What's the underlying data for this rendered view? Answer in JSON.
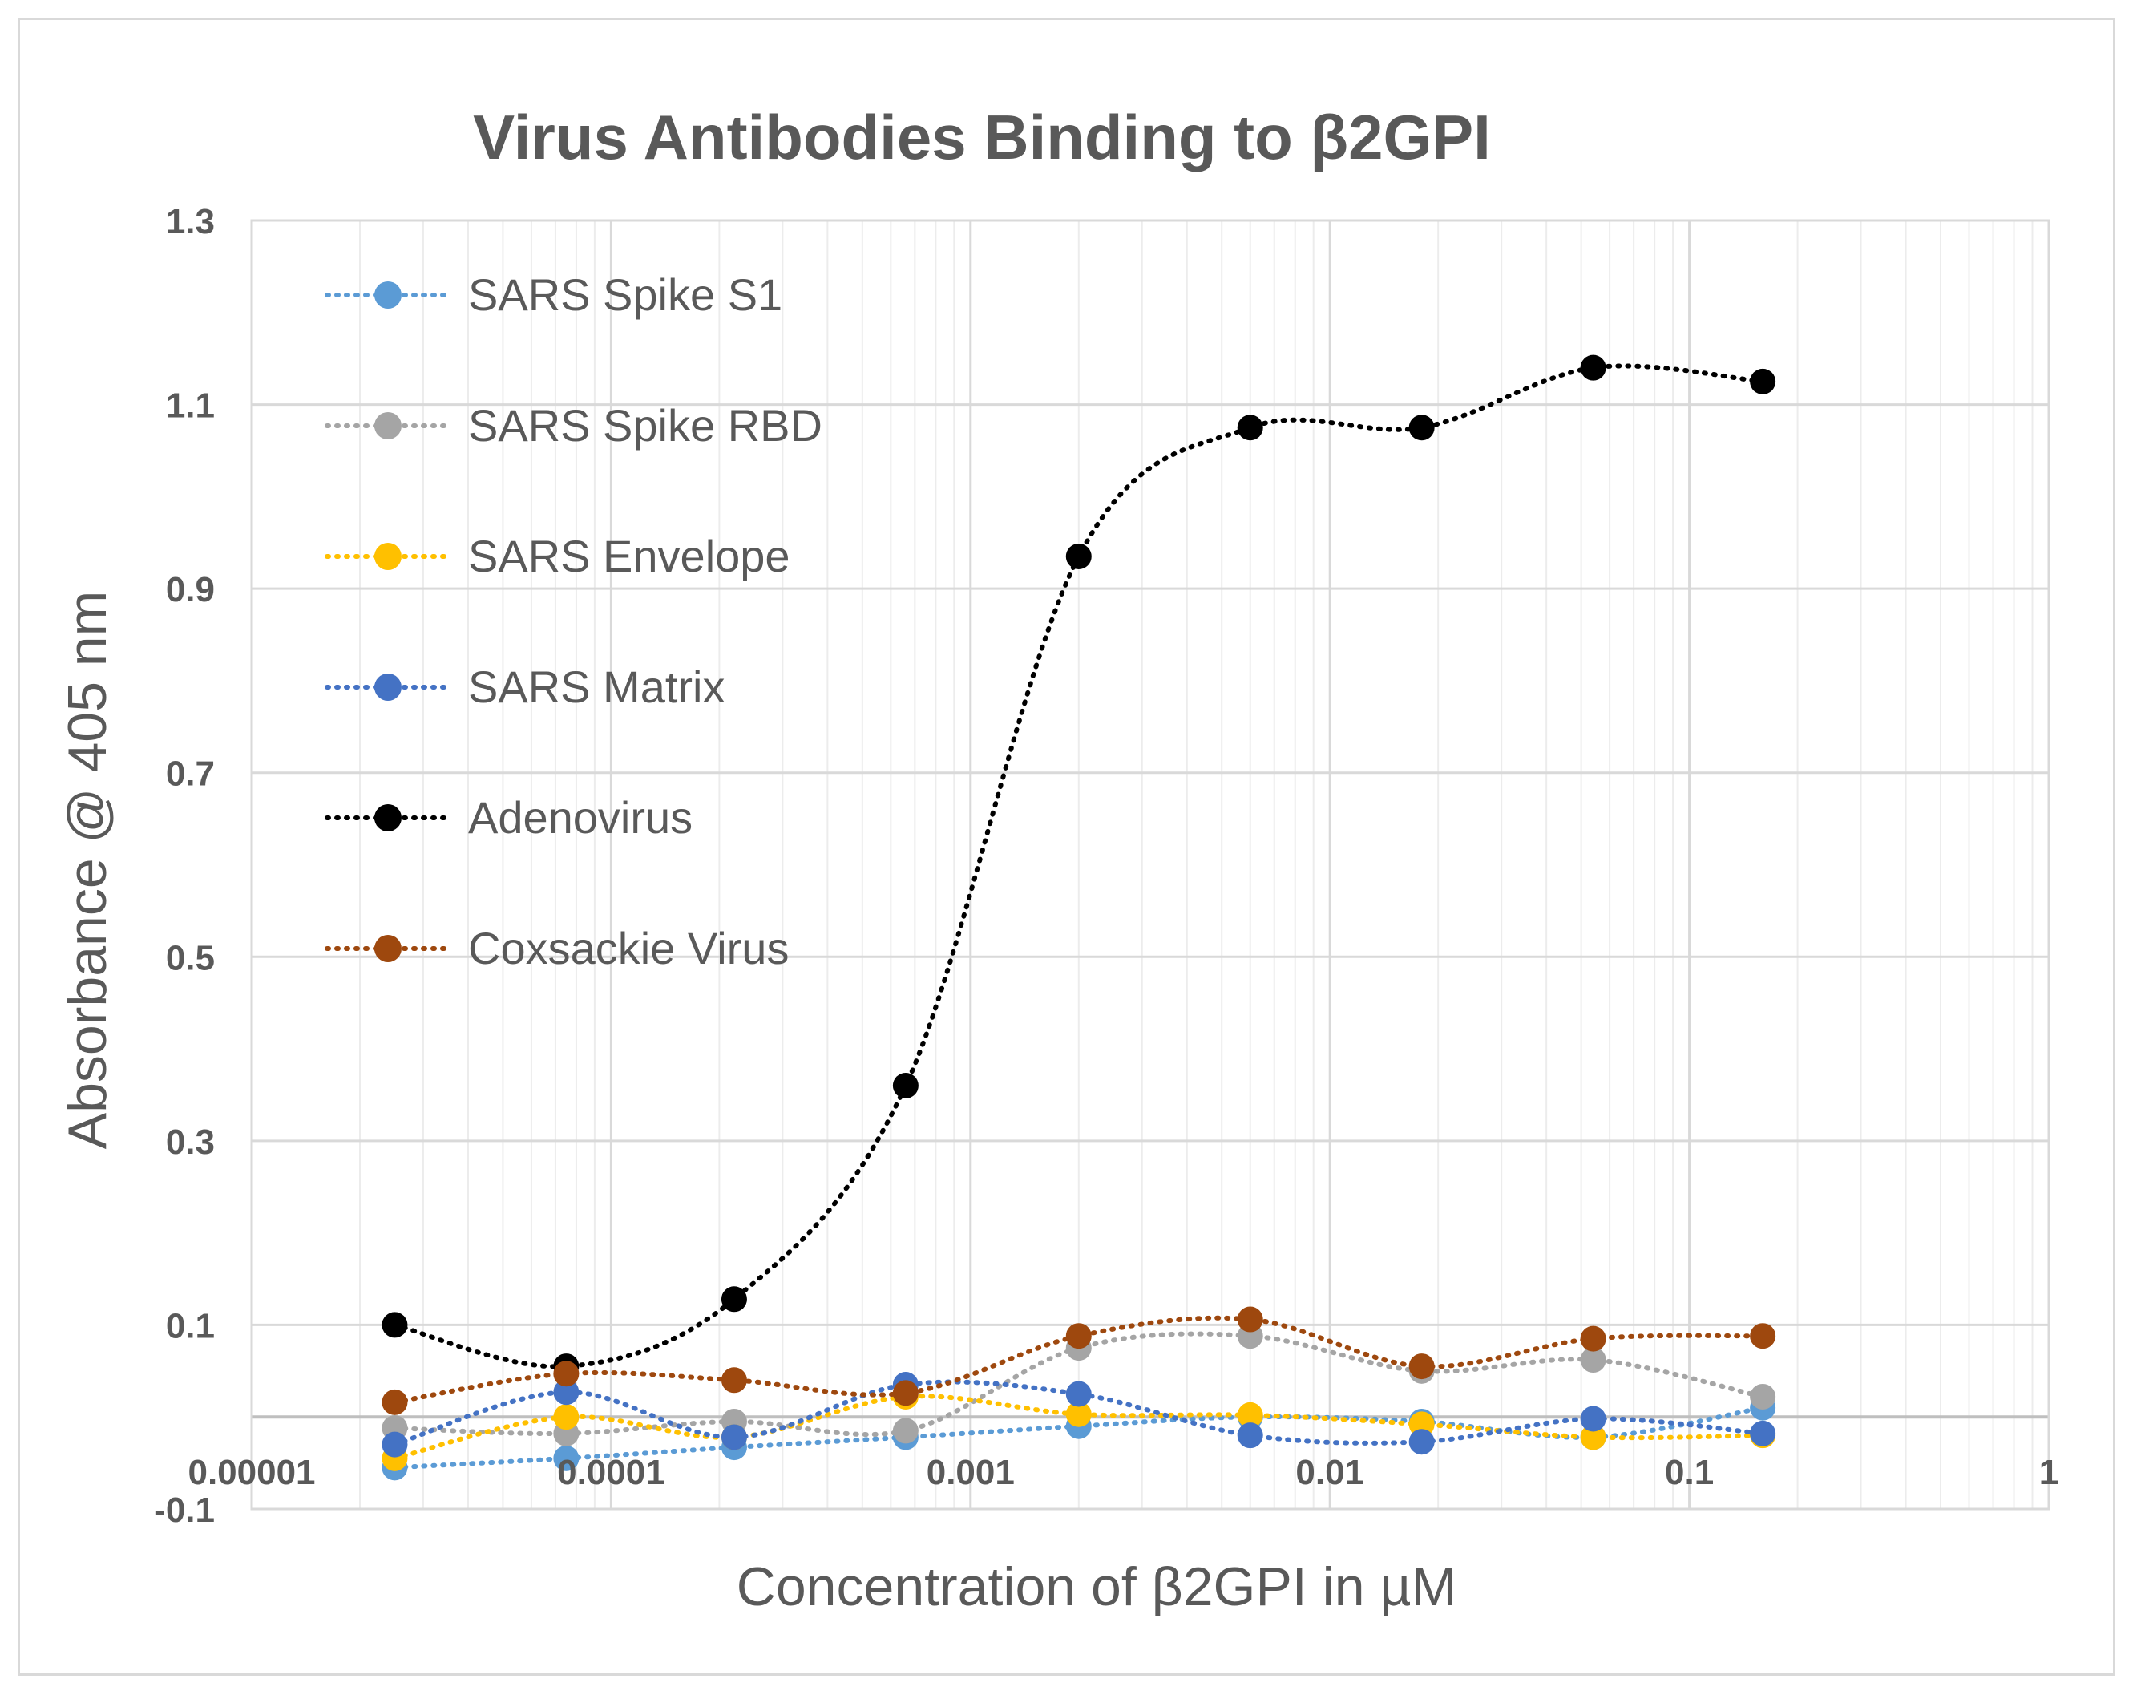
{
  "chart_data": {
    "type": "line",
    "title": "Virus Antibodies Binding to β2GPI",
    "xlabel": "Concentration of β2GPI in µM",
    "ylabel": "Absorbance @ 405 nm",
    "xscale": "log",
    "xlim": [
      1e-05,
      1
    ],
    "ylim": [
      -0.1,
      1.3
    ],
    "x_tick_labels": [
      "0.00001",
      "0.0001",
      "0.001",
      "0.01",
      "0.1",
      "1"
    ],
    "y_tick_labels": [
      "-0.1",
      "0.1",
      "0.3",
      "0.5",
      "0.7",
      "0.9",
      "1.1",
      "1.3"
    ],
    "x": [
      2.5e-05,
      7.5e-05,
      0.00022,
      0.00066,
      0.002,
      0.006,
      0.018,
      0.054,
      0.16
    ],
    "grid": true,
    "legend_position": "top-left",
    "series": [
      {
        "name": "SARS Spike S1",
        "color": "#5b9bd5",
        "values": [
          -0.055,
          -0.045,
          -0.033,
          -0.022,
          -0.01,
          0.0,
          -0.005,
          -0.022,
          0.01
        ]
      },
      {
        "name": "SARS Spike RBD",
        "color": "#a5a5a5",
        "values": [
          -0.012,
          -0.018,
          -0.005,
          -0.015,
          0.075,
          0.088,
          0.05,
          0.062,
          0.022
        ]
      },
      {
        "name": "SARS Envelope",
        "color": "#ffc000",
        "values": [
          -0.045,
          0.0,
          -0.022,
          0.022,
          0.003,
          0.002,
          -0.008,
          -0.022,
          -0.02
        ]
      },
      {
        "name": "SARS Matrix",
        "color": "#4472c4",
        "values": [
          -0.03,
          0.027,
          -0.022,
          0.035,
          0.025,
          -0.02,
          -0.027,
          -0.002,
          -0.018
        ]
      },
      {
        "name": "Adenovirus",
        "color": "#000000",
        "values": [
          0.1,
          0.055,
          0.128,
          0.36,
          0.935,
          1.075,
          1.075,
          1.14,
          1.125
        ]
      },
      {
        "name": "Coxsackie Virus",
        "color": "#9e480e",
        "values": [
          0.016,
          0.047,
          0.04,
          0.026,
          0.088,
          0.106,
          0.055,
          0.085,
          0.088
        ]
      }
    ]
  }
}
